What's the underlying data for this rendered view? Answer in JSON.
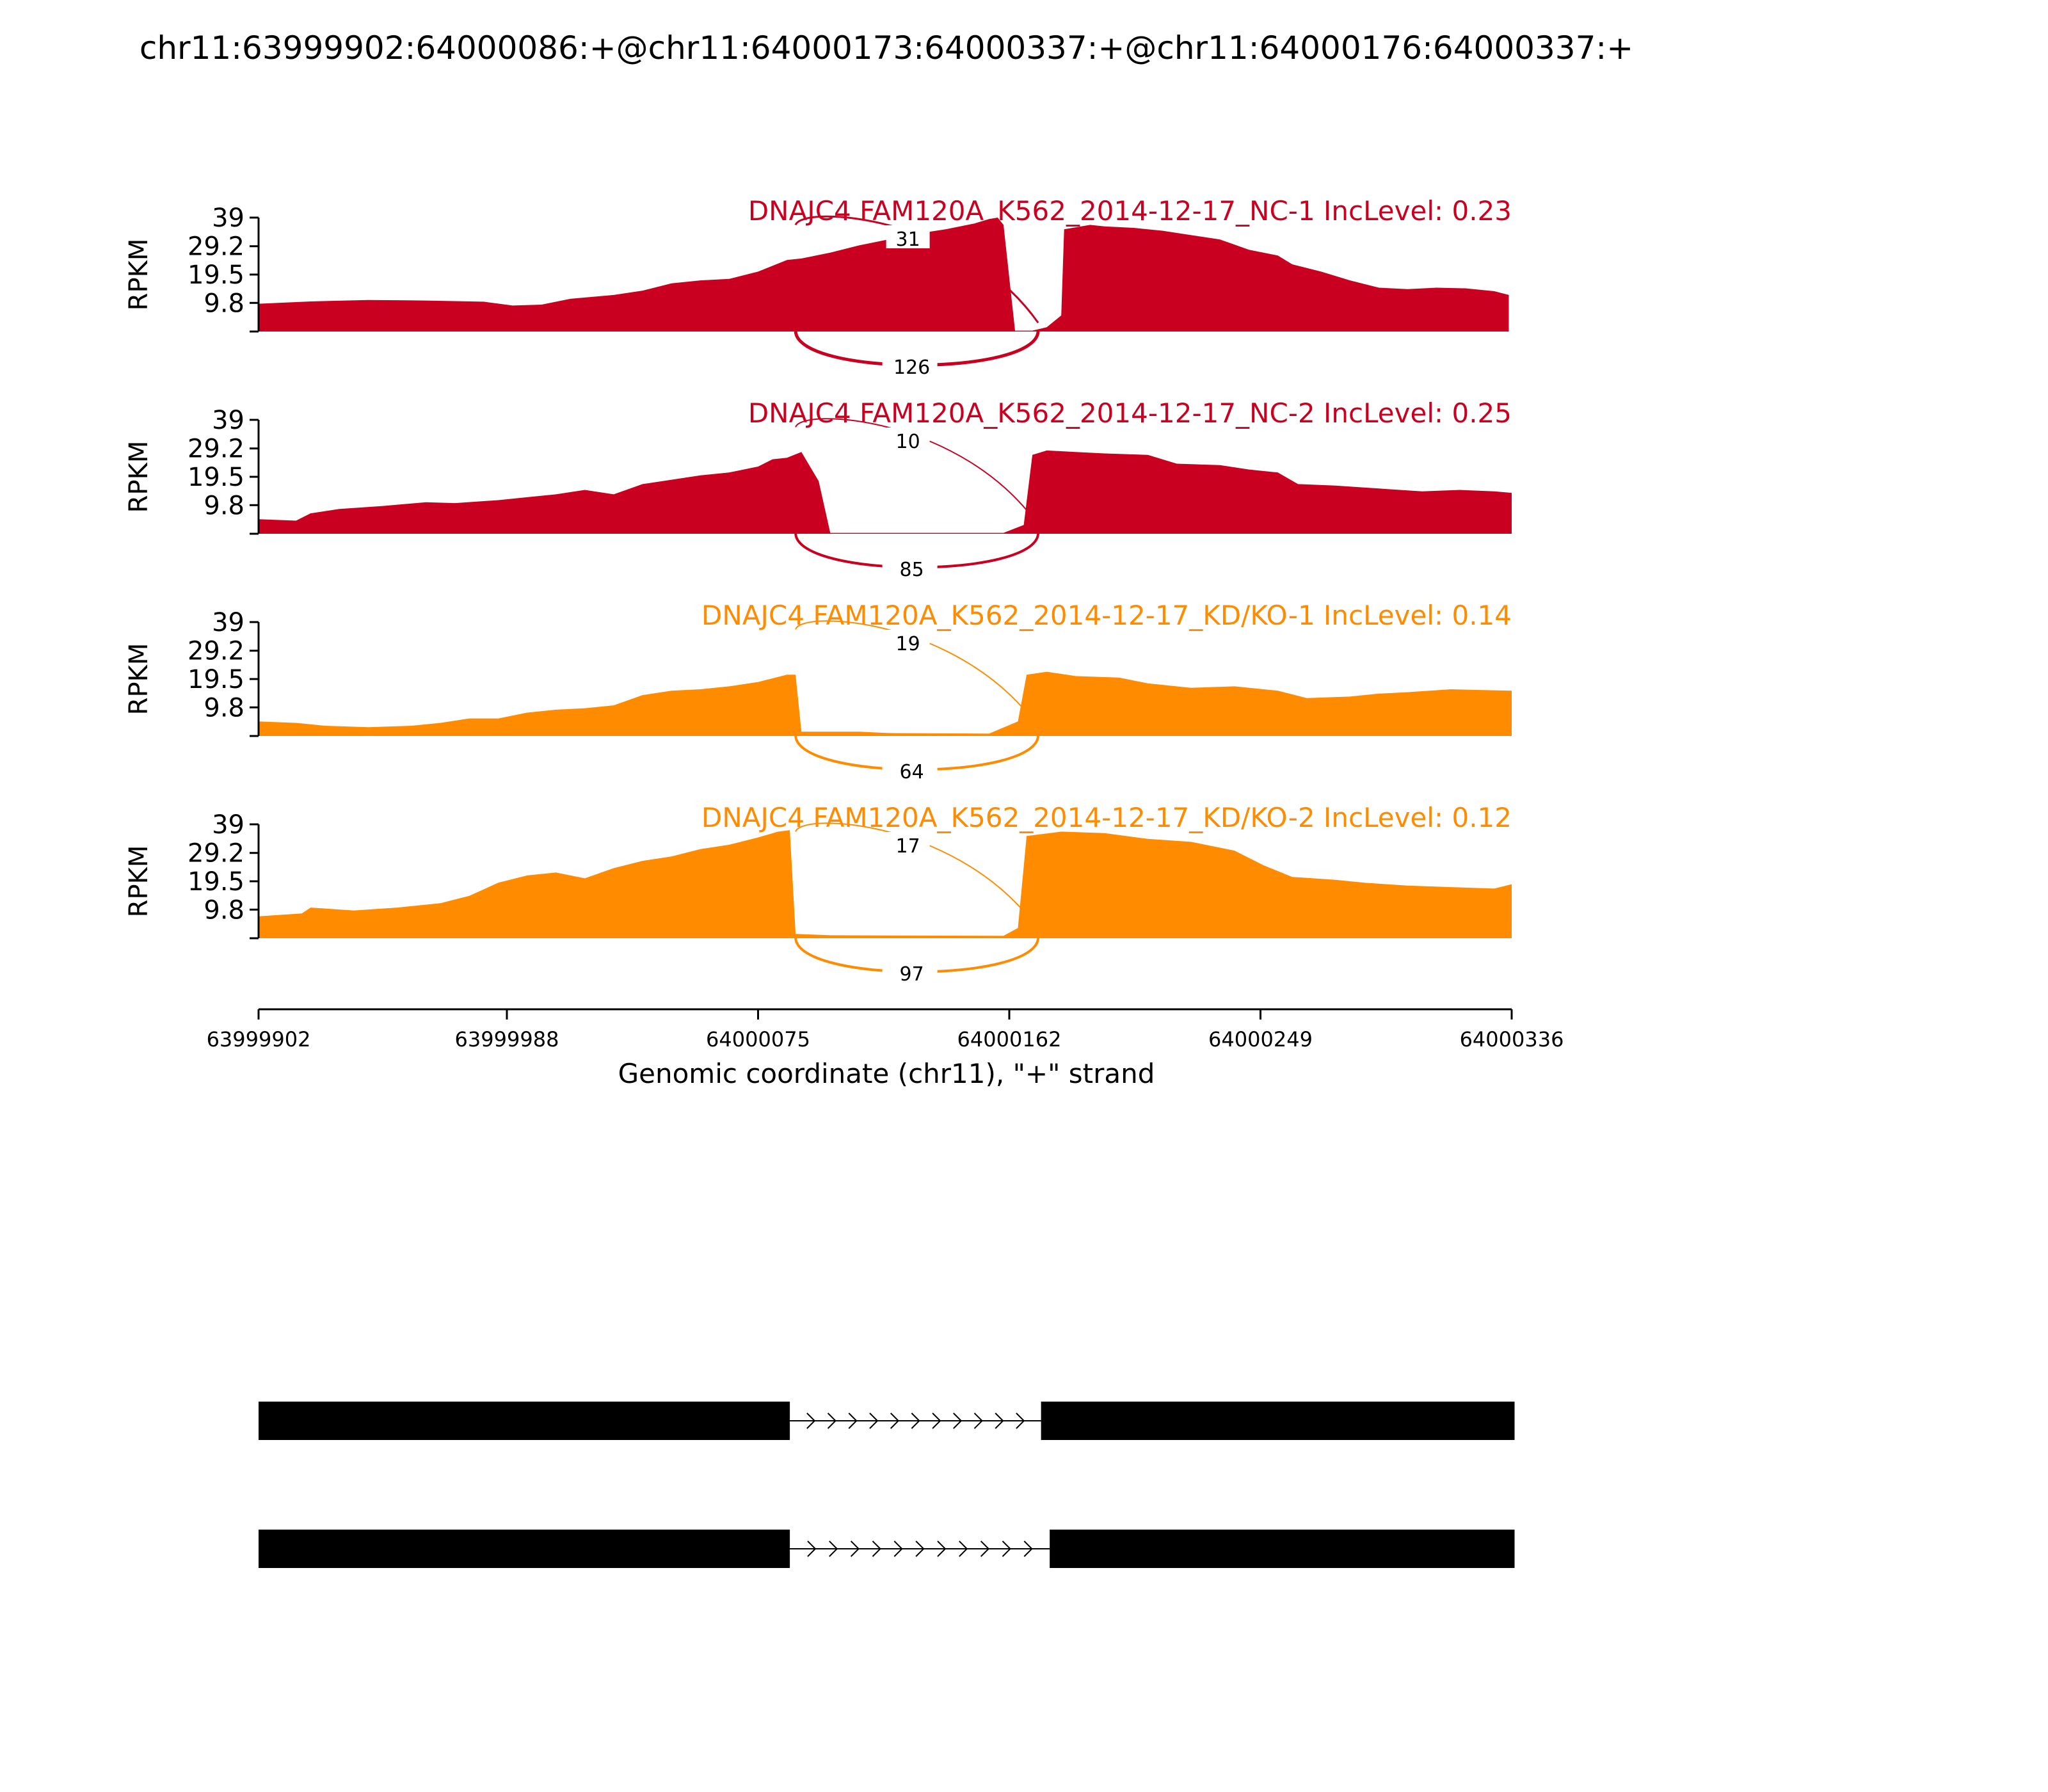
{
  "chart_data": {
    "type": "area",
    "title": "chr11:63999902:64000086:+@chr11:64000173:64000337:+@chr11:64000176:64000337:+",
    "xlabel": "Genomic coordinate (chr11), \"+\" strand",
    "ylabel": "RPKM",
    "xlim": [
      63999902,
      64000336
    ],
    "ylim": [
      0,
      39
    ],
    "x_ticks": [
      "63999902",
      "63999988",
      "64000075",
      "64000162",
      "64000249",
      "64000336"
    ],
    "y_ticks": [
      "9.8",
      "19.5",
      "29.2",
      "39"
    ],
    "colors": {
      "NC": "#ca0020",
      "KD": "#ff8b00"
    },
    "junction_coords": {
      "left_exon_end": 64000086,
      "right_exon_start_a": 64000173,
      "right_exon_start_b": 64000176
    },
    "samples": [
      {
        "name": "DNAJC4 FAM120A_K562_2014-12-17_NC-1 IncLevel: 0.23",
        "color": "#ca0020",
        "junction_upper": "31",
        "junction_lower": "126",
        "coverage": [
          [
            63999902,
            9.5
          ],
          [
            63999920,
            10.3
          ],
          [
            63999940,
            10.8
          ],
          [
            63999960,
            10.6
          ],
          [
            63999980,
            10.2
          ],
          [
            63999990,
            8.9
          ],
          [
            64000000,
            9.2
          ],
          [
            64000010,
            11.2
          ],
          [
            64000025,
            12.5
          ],
          [
            64000035,
            14.0
          ],
          [
            64000045,
            16.5
          ],
          [
            64000055,
            17.5
          ],
          [
            64000065,
            18.0
          ],
          [
            64000075,
            20.5
          ],
          [
            64000085,
            24.5
          ],
          [
            64000090,
            25.0
          ],
          [
            64000100,
            27.0
          ],
          [
            64000110,
            29.5
          ],
          [
            64000120,
            31.5
          ],
          [
            64000130,
            33.5
          ],
          [
            64000140,
            35.0
          ],
          [
            64000150,
            37.0
          ],
          [
            64000155,
            38.5
          ],
          [
            64000158,
            39.0
          ],
          [
            64000160,
            36.5
          ],
          [
            64000164,
            0.3
          ],
          [
            64000170,
            0.3
          ],
          [
            64000175,
            1.5
          ],
          [
            64000180,
            5.5
          ],
          [
            64000181,
            35.0
          ],
          [
            64000190,
            36.5
          ],
          [
            64000195,
            36.0
          ],
          [
            64000205,
            35.5
          ],
          [
            64000215,
            34.5
          ],
          [
            64000225,
            33.0
          ],
          [
            64000235,
            31.5
          ],
          [
            64000245,
            28.0
          ],
          [
            64000255,
            26.0
          ],
          [
            64000260,
            23.0
          ],
          [
            64000270,
            20.5
          ],
          [
            64000280,
            17.5
          ],
          [
            64000290,
            15.0
          ],
          [
            64000300,
            14.5
          ],
          [
            64000310,
            15.0
          ],
          [
            64000320,
            14.8
          ],
          [
            64000330,
            13.8
          ],
          [
            64000335,
            12.5
          ]
        ]
      },
      {
        "name": "DNAJC4 FAM120A_K562_2014-12-17_NC-2 IncLevel: 0.25",
        "color": "#ca0020",
        "junction_upper": "10",
        "junction_lower": "85",
        "coverage": [
          [
            63999902,
            5.0
          ],
          [
            63999915,
            4.5
          ],
          [
            63999920,
            7.0
          ],
          [
            63999930,
            8.5
          ],
          [
            63999945,
            9.5
          ],
          [
            63999960,
            10.8
          ],
          [
            63999970,
            10.5
          ],
          [
            63999985,
            11.5
          ],
          [
            63999995,
            12.5
          ],
          [
            64000005,
            13.5
          ],
          [
            64000015,
            15.0
          ],
          [
            64000025,
            13.5
          ],
          [
            64000035,
            17.0
          ],
          [
            64000045,
            18.5
          ],
          [
            64000055,
            20.0
          ],
          [
            64000065,
            21.0
          ],
          [
            64000075,
            23.0
          ],
          [
            64000080,
            25.5
          ],
          [
            64000085,
            26.0
          ],
          [
            64000090,
            28.0
          ],
          [
            64000096,
            18.0
          ],
          [
            64000100,
            0.3
          ],
          [
            64000160,
            0.3
          ],
          [
            64000167,
            3.0
          ],
          [
            64000170,
            27.0
          ],
          [
            64000175,
            28.5
          ],
          [
            64000185,
            28.0
          ],
          [
            64000195,
            27.5
          ],
          [
            64000210,
            27.0
          ],
          [
            64000220,
            24.0
          ],
          [
            64000235,
            23.5
          ],
          [
            64000245,
            22.0
          ],
          [
            64000255,
            21.0
          ],
          [
            64000262,
            17.0
          ],
          [
            64000275,
            16.5
          ],
          [
            64000290,
            15.5
          ],
          [
            64000305,
            14.5
          ],
          [
            64000318,
            15.0
          ],
          [
            64000330,
            14.5
          ],
          [
            64000336,
            14.0
          ]
        ]
      },
      {
        "name": "DNAJC4 FAM120A_K562_2014-12-17_KD/KO-1 IncLevel: 0.14",
        "color": "#ff8b00",
        "junction_upper": "19",
        "junction_lower": "64",
        "coverage": [
          [
            63999902,
            5.0
          ],
          [
            63999915,
            4.5
          ],
          [
            63999925,
            3.5
          ],
          [
            63999940,
            3.0
          ],
          [
            63999955,
            3.5
          ],
          [
            63999965,
            4.5
          ],
          [
            63999975,
            6.0
          ],
          [
            63999985,
            6.0
          ],
          [
            63999995,
            8.0
          ],
          [
            64000005,
            9.0
          ],
          [
            64000015,
            9.5
          ],
          [
            64000025,
            10.5
          ],
          [
            64000035,
            14.0
          ],
          [
            64000045,
            15.5
          ],
          [
            64000055,
            16.0
          ],
          [
            64000065,
            17.0
          ],
          [
            64000075,
            18.5
          ],
          [
            64000085,
            21.0
          ],
          [
            64000088,
            21.0
          ],
          [
            64000090,
            1.5
          ],
          [
            64000110,
            1.5
          ],
          [
            64000120,
            1.0
          ],
          [
            64000155,
            0.8
          ],
          [
            64000165,
            5.0
          ],
          [
            64000168,
            21.0
          ],
          [
            64000175,
            22.0
          ],
          [
            64000185,
            20.5
          ],
          [
            64000200,
            20.0
          ],
          [
            64000210,
            18.0
          ],
          [
            64000225,
            16.5
          ],
          [
            64000240,
            17.0
          ],
          [
            64000255,
            15.5
          ],
          [
            64000265,
            13.0
          ],
          [
            64000280,
            13.5
          ],
          [
            64000290,
            14.5
          ],
          [
            64000300,
            15.0
          ],
          [
            64000315,
            16.0
          ],
          [
            64000336,
            15.5
          ]
        ]
      },
      {
        "name": "DNAJC4 FAM120A_K562_2014-12-17_KD/KO-2 IncLevel: 0.12",
        "color": "#ff8b00",
        "junction_upper": "17",
        "junction_lower": "97",
        "coverage": [
          [
            63999902,
            7.5
          ],
          [
            63999917,
            8.5
          ],
          [
            63999920,
            10.5
          ],
          [
            63999935,
            9.5
          ],
          [
            63999950,
            10.5
          ],
          [
            63999965,
            12.0
          ],
          [
            63999975,
            14.5
          ],
          [
            63999985,
            19.0
          ],
          [
            63999995,
            21.5
          ],
          [
            64000005,
            22.5
          ],
          [
            64000015,
            20.5
          ],
          [
            64000025,
            24.0
          ],
          [
            64000035,
            26.5
          ],
          [
            64000045,
            28.0
          ],
          [
            64000055,
            30.5
          ],
          [
            64000065,
            32.0
          ],
          [
            64000075,
            34.5
          ],
          [
            64000082,
            36.5
          ],
          [
            64000086,
            37.0
          ],
          [
            64000088,
            1.5
          ],
          [
            64000100,
            1.0
          ],
          [
            64000160,
            0.8
          ],
          [
            64000165,
            3.5
          ],
          [
            64000168,
            35.0
          ],
          [
            64000180,
            36.5
          ],
          [
            64000195,
            36.0
          ],
          [
            64000210,
            34.0
          ],
          [
            64000225,
            33.0
          ],
          [
            64000240,
            30.0
          ],
          [
            64000250,
            25.0
          ],
          [
            64000260,
            21.0
          ],
          [
            64000275,
            20.0
          ],
          [
            64000285,
            19.0
          ],
          [
            64000300,
            18.0
          ],
          [
            64000315,
            17.5
          ],
          [
            64000330,
            17.0
          ],
          [
            64000336,
            18.5
          ]
        ]
      }
    ],
    "transcripts": [
      {
        "exons": [
          [
            63999902,
            64000086
          ],
          [
            64000173,
            64000337
          ]
        ]
      },
      {
        "exons": [
          [
            63999902,
            64000086
          ],
          [
            64000176,
            64000337
          ]
        ]
      }
    ]
  }
}
